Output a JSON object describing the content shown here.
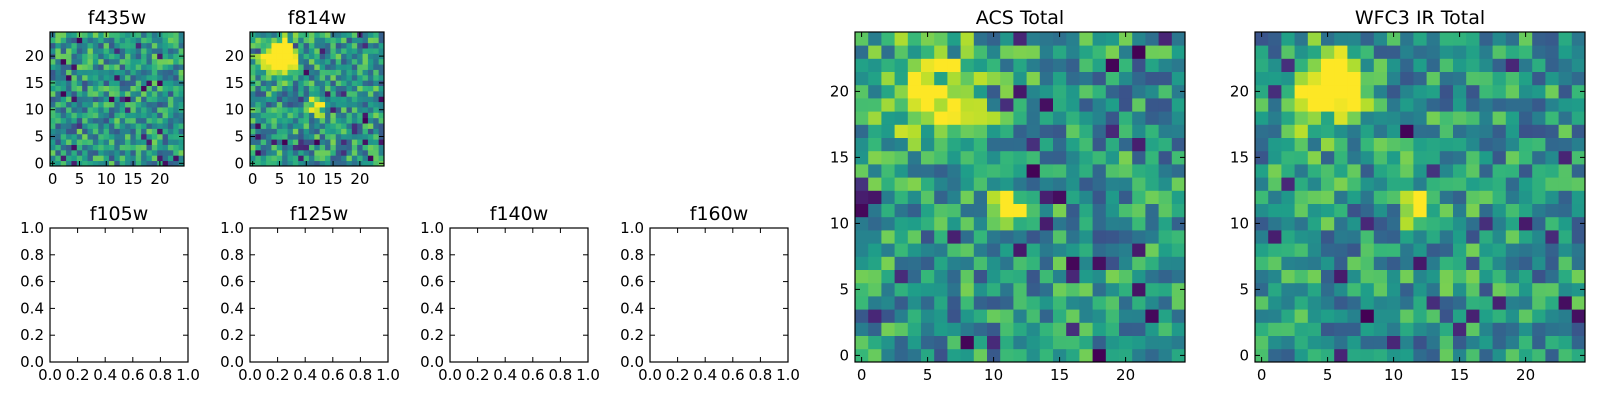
{
  "chart_data": [
    {
      "type": "heatmap",
      "title": "f435w",
      "xlim": [
        -0.5,
        24.5
      ],
      "ylim": [
        -0.5,
        24.5
      ],
      "xticks": [
        0,
        5,
        10,
        15,
        20
      ],
      "yticks": [
        0,
        5,
        10,
        15,
        20
      ],
      "grid_size": 25,
      "colormap": "viridis",
      "origin": "lower",
      "features": []
    },
    {
      "type": "heatmap",
      "title": "f814w",
      "xlim": [
        -0.5,
        24.5
      ],
      "ylim": [
        -0.5,
        24.5
      ],
      "xticks": [
        0,
        5,
        10,
        15,
        20
      ],
      "yticks": [
        0,
        5,
        10,
        15,
        20
      ],
      "grid_size": 25,
      "colormap": "viridis",
      "origin": "lower",
      "features": [
        {
          "x": 5,
          "y": 20,
          "sigma": 2.2,
          "amp": 0.75
        },
        {
          "x": 12,
          "y": 11,
          "sigma": 1.3,
          "amp": 0.5
        }
      ]
    },
    {
      "type": "heatmap",
      "title": "ACS Total",
      "xlim": [
        -0.5,
        24.5
      ],
      "ylim": [
        -0.5,
        24.5
      ],
      "xticks": [
        0,
        5,
        10,
        15,
        20
      ],
      "yticks": [
        0,
        5,
        10,
        15,
        20
      ],
      "grid_size": 25,
      "colormap": "viridis",
      "origin": "lower",
      "features": [
        {
          "x": 6,
          "y": 20,
          "sigma": 2.6,
          "amp": 0.55
        },
        {
          "x": 11.5,
          "y": 11.5,
          "sigma": 1.0,
          "amp": 0.4
        }
      ]
    },
    {
      "type": "heatmap",
      "title": "WFC3 IR Total",
      "xlim": [
        -0.5,
        24.5
      ],
      "ylim": [
        -0.5,
        24.5
      ],
      "xticks": [
        0,
        5,
        10,
        15,
        20
      ],
      "yticks": [
        0,
        5,
        10,
        15,
        20
      ],
      "grid_size": 25,
      "colormap": "viridis",
      "origin": "lower",
      "features": [
        {
          "x": 5,
          "y": 20,
          "sigma": 1.8,
          "amp": 0.85
        },
        {
          "x": 12,
          "y": 11.5,
          "sigma": 0.9,
          "amp": 0.7
        }
      ]
    },
    {
      "type": "heatmap",
      "title": "f105w",
      "xlim": [
        0,
        1
      ],
      "ylim": [
        0,
        1
      ],
      "xticks": [
        "0.0",
        "0.2",
        "0.4",
        "0.6",
        "0.8",
        "1.0"
      ],
      "yticks": [
        "0.0",
        "0.2",
        "0.4",
        "0.6",
        "0.8",
        "1.0"
      ],
      "empty": true
    },
    {
      "type": "heatmap",
      "title": "f125w",
      "xlim": [
        0,
        1
      ],
      "ylim": [
        0,
        1
      ],
      "xticks": [
        "0.0",
        "0.2",
        "0.4",
        "0.6",
        "0.8",
        "1.0"
      ],
      "yticks": [
        "0.0",
        "0.2",
        "0.4",
        "0.6",
        "0.8",
        "1.0"
      ],
      "empty": true
    },
    {
      "type": "heatmap",
      "title": "f140w",
      "xlim": [
        0,
        1
      ],
      "ylim": [
        0,
        1
      ],
      "xticks": [
        "0.0",
        "0.2",
        "0.4",
        "0.6",
        "0.8",
        "1.0"
      ],
      "yticks": [
        "0.0",
        "0.2",
        "0.4",
        "0.6",
        "0.8",
        "1.0"
      ],
      "empty": true
    },
    {
      "type": "heatmap",
      "title": "f160w",
      "xlim": [
        0,
        1
      ],
      "ylim": [
        0,
        1
      ],
      "xticks": [
        "0.0",
        "0.2",
        "0.4",
        "0.6",
        "0.8",
        "1.0"
      ],
      "yticks": [
        "0.0",
        "0.2",
        "0.4",
        "0.6",
        "0.8",
        "1.0"
      ],
      "empty": true
    }
  ]
}
